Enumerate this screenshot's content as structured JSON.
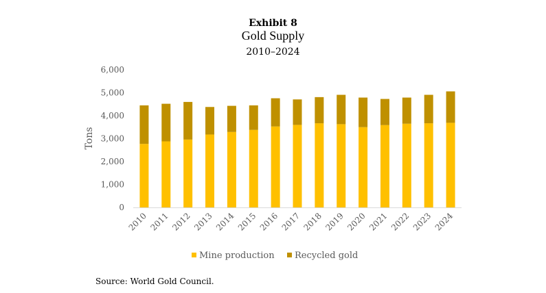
{
  "exhibit": "Exhibit 8",
  "source": "Source: World Gold Council.",
  "colors": {
    "mine": "#FFC000",
    "recycled": "#BF9000",
    "axis": "#D9D9D9",
    "text": "#595959"
  },
  "chart_data": {
    "type": "bar",
    "stacked": true,
    "title": "Gold Supply",
    "subtitle": "2010–2024",
    "xlabel": "",
    "ylabel": "Tons",
    "ylim": [
      0,
      6000
    ],
    "yticks": [
      0,
      1000,
      2000,
      3000,
      4000,
      5000,
      6000
    ],
    "ytick_labels": [
      "0",
      "1,000",
      "2,000",
      "3,000",
      "4,000",
      "5,000",
      "6,000"
    ],
    "grid": false,
    "legend_position": "bottom",
    "categories": [
      "2010",
      "2011",
      "2012",
      "2013",
      "2014",
      "2015",
      "2016",
      "2017",
      "2018",
      "2019",
      "2020",
      "2021",
      "2022",
      "2023",
      "2024"
    ],
    "series": [
      {
        "name": "Mine production",
        "values": [
          2770,
          2880,
          2960,
          3180,
          3290,
          3380,
          3530,
          3600,
          3670,
          3630,
          3500,
          3590,
          3650,
          3670,
          3690
        ]
      },
      {
        "name": "Recycled gold",
        "values": [
          1680,
          1640,
          1640,
          1200,
          1140,
          1070,
          1230,
          1110,
          1140,
          1280,
          1290,
          1140,
          1140,
          1240,
          1370
        ]
      }
    ]
  }
}
